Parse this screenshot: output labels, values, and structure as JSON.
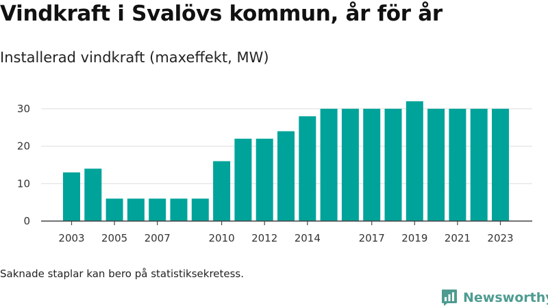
{
  "chart_data": {
    "type": "bar",
    "title": "Vindkraft i Svalövs kommun, år för år",
    "subtitle": "Installerad vindkraft (maxeffekt, MW)",
    "categories": [
      "2003",
      "2004",
      "2005",
      "2006",
      "2007",
      "2008",
      "2009",
      "2010",
      "2011",
      "2012",
      "2013",
      "2014",
      "2015",
      "2016",
      "2017",
      "2018",
      "2019",
      "2020",
      "2021",
      "2022",
      "2023"
    ],
    "values": [
      13,
      14,
      6,
      6,
      6,
      6,
      6,
      16,
      22,
      22,
      24,
      28,
      30,
      30,
      30,
      30,
      32,
      30,
      30,
      30,
      30
    ],
    "x_tick_labels": [
      "2003",
      "2005",
      "2007",
      "2010",
      "2012",
      "2014",
      "2017",
      "2019",
      "2021",
      "2023"
    ],
    "yticks": [
      0,
      10,
      20,
      30
    ],
    "ylim": [
      0,
      32
    ],
    "xlabel": "",
    "ylabel": "",
    "grid": true,
    "bar_color": "#00a39a"
  },
  "footnote": "Saknade staplar kan bero på statistiksekretess.",
  "brand": {
    "name": "Newsworthy",
    "color": "#4e9b91"
  }
}
